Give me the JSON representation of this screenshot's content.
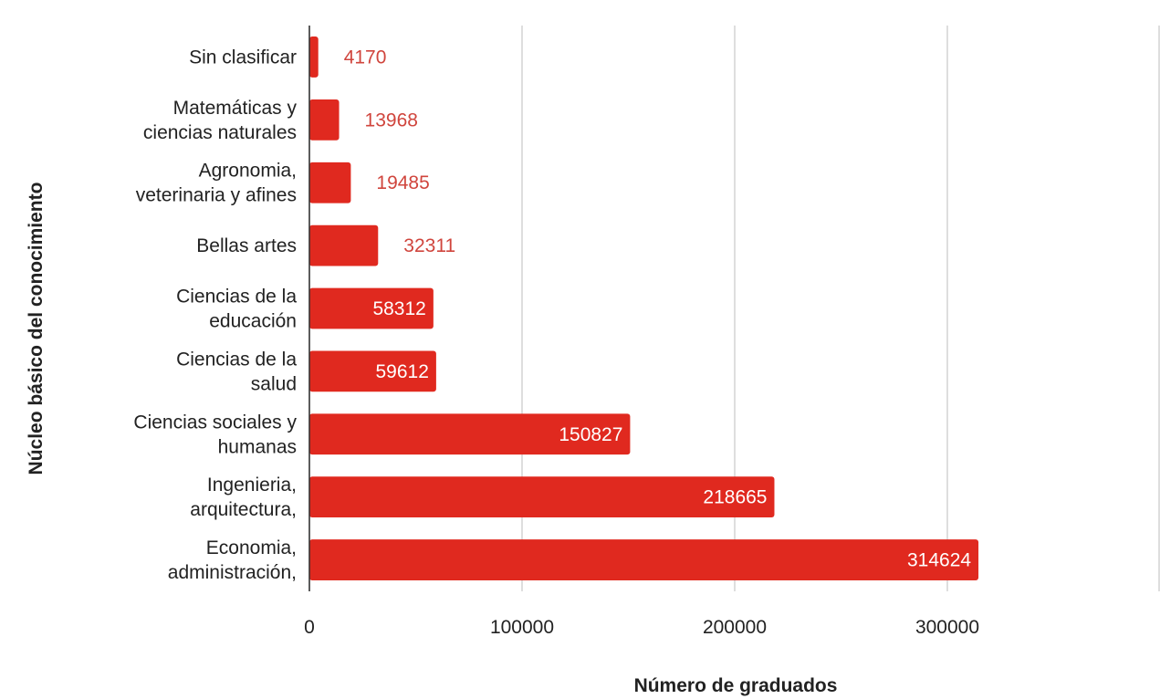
{
  "chart_data": {
    "type": "bar",
    "orientation": "horizontal",
    "title": "",
    "xlabel": "Número de graduados",
    "ylabel": "Núcleo básico del conocimiento",
    "categories": [
      [
        "Sin clasificar"
      ],
      [
        "Matemáticas y",
        "ciencias naturales"
      ],
      [
        "Agronomia,",
        "veterinaria y afines"
      ],
      [
        "Bellas artes"
      ],
      [
        "Ciencias de la",
        "educación"
      ],
      [
        "Ciencias de la",
        "salud"
      ],
      [
        "Ciencias sociales y",
        "humanas"
      ],
      [
        "Ingenieria,",
        "arquitectura,"
      ],
      [
        "Economia,",
        "administración,"
      ]
    ],
    "values": [
      4170,
      13968,
      19485,
      32311,
      58312,
      59612,
      150827,
      218665,
      314624
    ],
    "data_labels": [
      "4170",
      "13968",
      "19485",
      "32311",
      "58312",
      "59612",
      "150827",
      "218665",
      "314624"
    ],
    "xticks": [
      "0",
      "100000",
      "200000",
      "300000"
    ],
    "xtick_values": [
      0,
      100000,
      200000,
      300000
    ],
    "xlim": [
      0,
      400000
    ],
    "grid": true,
    "legend": "none",
    "colors": {
      "bar": "#e0291f",
      "label_outside": "#d0453d",
      "label_inside": "#ffffff",
      "grid": "#cccccc",
      "axis": "#333333"
    }
  }
}
